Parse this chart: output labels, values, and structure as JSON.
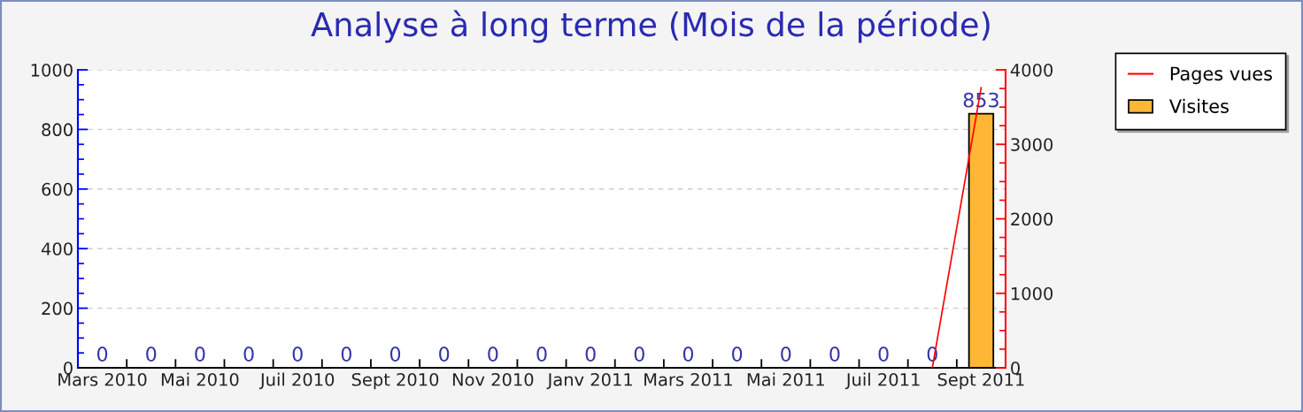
{
  "chart_data": {
    "type": "bar",
    "title": "Analyse à long terme (Mois de la période)",
    "categories": [
      "Mars 2010",
      null,
      "Mai 2010",
      null,
      "Juil 2010",
      null,
      "Sept 2010",
      null,
      "Nov 2010",
      null,
      "Janv 2011",
      null,
      "Mars 2011",
      null,
      "Mai 2011",
      null,
      "Juil 2011",
      null,
      "Sept 2011"
    ],
    "series": [
      {
        "name": "Pages vues",
        "type": "line",
        "axis": "y2",
        "color": "#ff0000",
        "values": [
          null,
          null,
          null,
          null,
          null,
          null,
          null,
          null,
          null,
          null,
          null,
          null,
          null,
          null,
          null,
          null,
          null,
          0,
          3760
        ]
      },
      {
        "name": "Visites",
        "color": "#ffb634",
        "values": [
          0,
          0,
          0,
          0,
          0,
          0,
          0,
          0,
          0,
          0,
          0,
          0,
          0,
          0,
          0,
          0,
          0,
          0,
          853
        ],
        "value_labels": [
          "0",
          "0",
          "0",
          "0",
          "0",
          "0",
          "0",
          "0",
          "0",
          "0",
          "0",
          "0",
          "0",
          "0",
          "0",
          "0",
          "0",
          "0",
          "853"
        ]
      }
    ],
    "ylim": [
      0,
      1000
    ],
    "yticks": [
      0,
      200,
      400,
      600,
      800,
      1000
    ],
    "y2lim": [
      0,
      4000
    ],
    "y2ticks": [
      0,
      1000,
      2000,
      3000,
      4000
    ],
    "grid": "y",
    "legend": "top right"
  }
}
